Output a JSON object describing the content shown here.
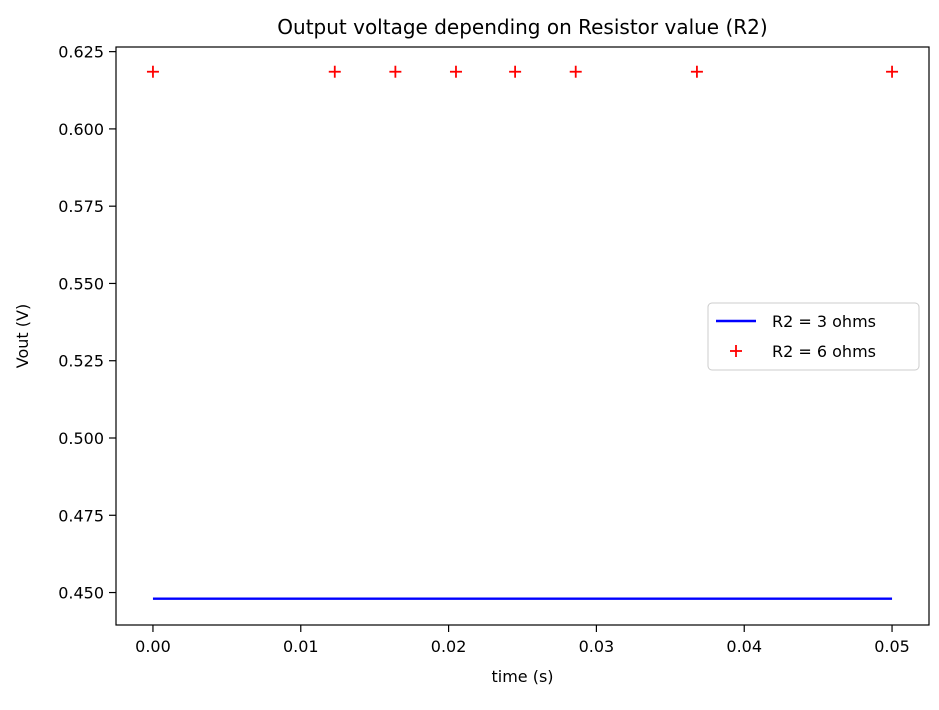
{
  "chart_data": {
    "type": "line",
    "title": "Output voltage depending on Resistor value (R2)",
    "xlabel": "time (s)",
    "ylabel": "Vout (V)",
    "xlim": [
      -0.0025,
      0.0525
    ],
    "ylim": [
      0.4395,
      0.6265
    ],
    "x_ticks": [
      0.0,
      0.01,
      0.02,
      0.03,
      0.04,
      0.05
    ],
    "x_tick_labels": [
      "0.00",
      "0.01",
      "0.02",
      "0.03",
      "0.04",
      "0.05"
    ],
    "y_ticks": [
      0.45,
      0.475,
      0.5,
      0.525,
      0.55,
      0.575,
      0.6,
      0.625
    ],
    "y_tick_labels": [
      "0.450",
      "0.475",
      "0.500",
      "0.525",
      "0.550",
      "0.575",
      "0.600",
      "0.625"
    ],
    "grid": false,
    "legend_position": "center-right",
    "series": [
      {
        "name": "R2 = 3 ohms",
        "style": "line",
        "color": "#0000ff",
        "x": [
          0.0,
          0.05
        ],
        "y": [
          0.448,
          0.448
        ]
      },
      {
        "name": "R2 = 6 ohms",
        "style": "marker-plus",
        "color": "#ff0000",
        "x": [
          0.0,
          0.0123,
          0.0164,
          0.0205,
          0.0245,
          0.0286,
          0.0368,
          0.05
        ],
        "y": [
          0.6185,
          0.6185,
          0.6185,
          0.6185,
          0.6185,
          0.6185,
          0.6185,
          0.6185
        ]
      }
    ]
  }
}
